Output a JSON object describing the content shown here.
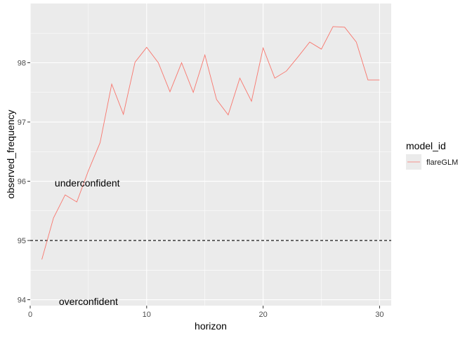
{
  "chart_data": {
    "type": "line",
    "title": "",
    "xlabel": "horizon",
    "ylabel": "observed_frequency",
    "xlim": [
      0,
      31
    ],
    "ylim": [
      93.9,
      99.0
    ],
    "x_ticks": [
      0,
      10,
      20,
      30
    ],
    "y_ticks": [
      94,
      95,
      96,
      97,
      98
    ],
    "grid": true,
    "legend": {
      "title": "model_id",
      "position": "right",
      "entries": [
        {
          "label": "flareGLM",
          "color": "#F8766D"
        }
      ]
    },
    "series": [
      {
        "name": "flareGLM",
        "color": "#F8766D",
        "x": [
          1,
          2,
          3,
          4,
          5,
          6,
          7,
          8,
          9,
          10,
          11,
          12,
          13,
          14,
          15,
          16,
          17,
          18,
          19,
          20,
          21,
          22,
          23,
          24,
          25,
          26,
          27,
          28,
          29,
          30
        ],
        "y": [
          94.68,
          95.38,
          95.77,
          95.65,
          96.18,
          96.65,
          97.64,
          97.13,
          98.01,
          98.26,
          98.0,
          97.51,
          98.0,
          97.5,
          98.13,
          97.38,
          97.12,
          97.74,
          97.35,
          98.25,
          97.74,
          97.86,
          98.1,
          98.35,
          98.23,
          98.61,
          98.6,
          98.35,
          97.71,
          97.71
        ]
      }
    ],
    "reference_line": {
      "y": 95,
      "style": "dashed",
      "color": "#000000"
    },
    "annotations": [
      {
        "text": "underconfident",
        "x": 4.9,
        "y": 95.97
      },
      {
        "text": "overconfident",
        "x": 5.0,
        "y": 93.97
      }
    ]
  }
}
